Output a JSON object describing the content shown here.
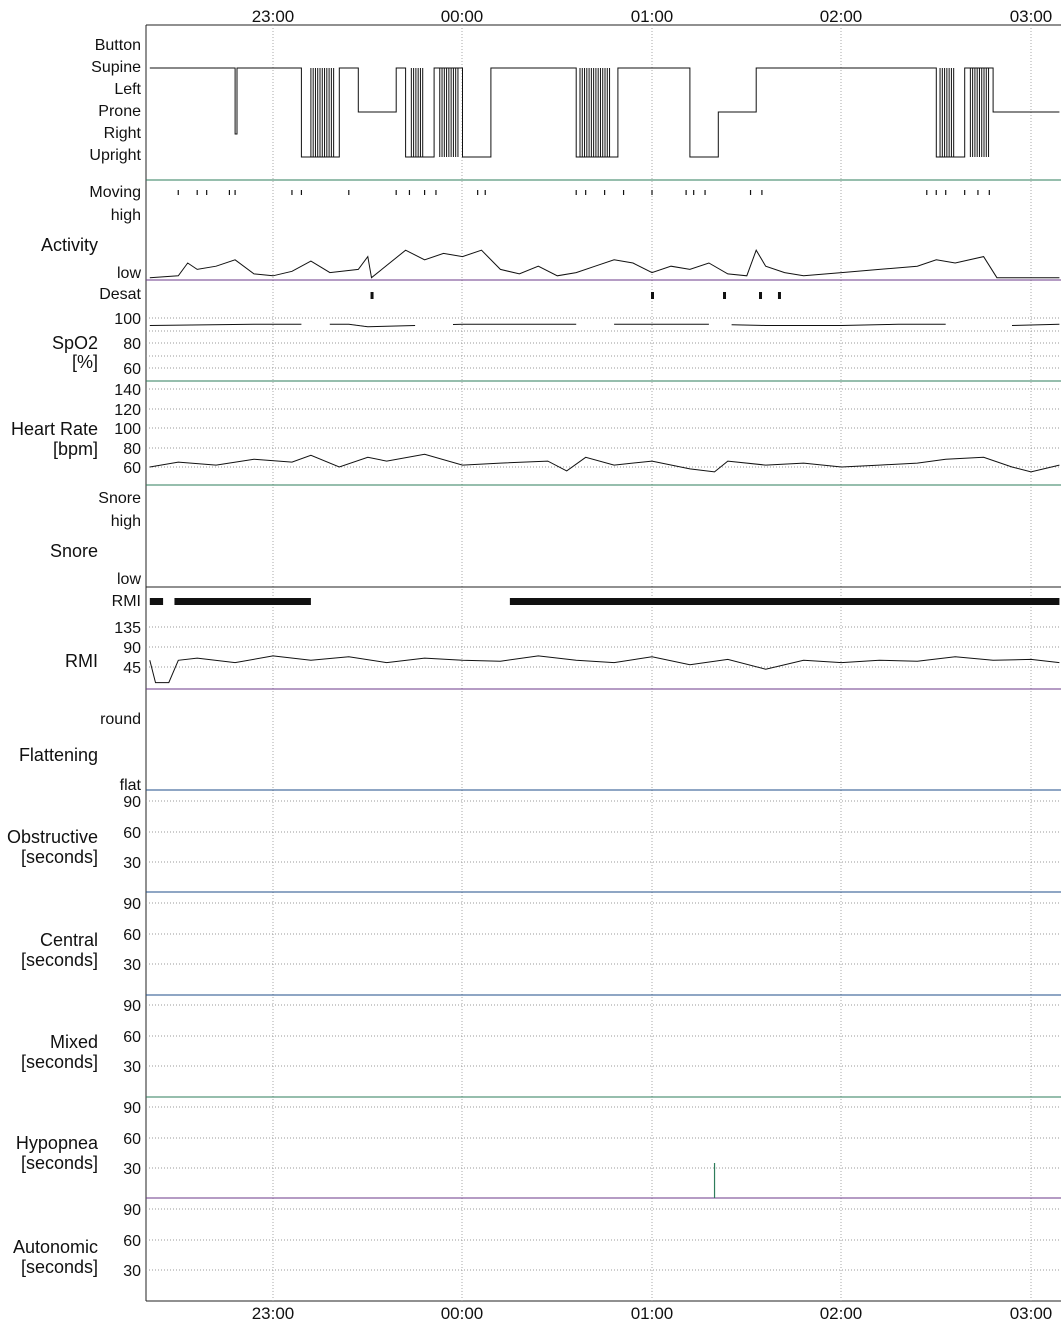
{
  "time_axis": {
    "ticks": [
      "23:00",
      "00:00",
      "01:00",
      "02:00",
      "03:00"
    ]
  },
  "panels": {
    "position": {
      "labels": [
        "Button",
        "Supine",
        "Left",
        "Prone",
        "Right",
        "Upright"
      ]
    },
    "moving": {
      "label": "Moving"
    },
    "activity": {
      "title": "Activity",
      "high": "high",
      "low": "low"
    },
    "desat": {
      "label": "Desat"
    },
    "spo2": {
      "title_line1": "SpO2",
      "title_line2": "[%]",
      "ticks": [
        "100",
        "80",
        "60"
      ]
    },
    "heart_rate": {
      "title_line1": "Heart Rate",
      "title_line2": "[bpm]",
      "ticks": [
        "140",
        "120",
        "100",
        "80",
        "60"
      ]
    },
    "snore": {
      "top": "Snore",
      "high": "high",
      "title": "Snore",
      "low": "low"
    },
    "rmi": {
      "top": "RMI",
      "title": "RMI",
      "ticks": [
        "135",
        "90",
        "45"
      ]
    },
    "flattening": {
      "title": "Flattening",
      "round": "round",
      "flat": "flat"
    },
    "obstructive": {
      "title_line1": "Obstructive",
      "title_line2": "[seconds]",
      "ticks": [
        "90",
        "60",
        "30"
      ]
    },
    "central": {
      "title_line1": "Central",
      "title_line2": "[seconds]",
      "ticks": [
        "90",
        "60",
        "30"
      ]
    },
    "mixed": {
      "title_line1": "Mixed",
      "title_line2": "[seconds]",
      "ticks": [
        "90",
        "60",
        "30"
      ]
    },
    "hypopnea": {
      "title_line1": "Hypopnea",
      "title_line2": "[seconds]",
      "ticks": [
        "90",
        "60",
        "30"
      ]
    },
    "autonomic": {
      "title_line1": "Autonomic",
      "title_line2": "[seconds]",
      "ticks": [
        "90",
        "60",
        "30"
      ]
    }
  },
  "chart_data": {
    "type": "line",
    "description_units": "Time in decimal hours since midnight (22.5 = 22:30, 25.0 = 01:00)",
    "x_range": [
      22.35,
      27.15
    ],
    "position": {
      "categories": [
        "Button",
        "Supine",
        "Left",
        "Prone",
        "Right",
        "Upright"
      ],
      "segments": [
        [
          22.35,
          "Supine"
        ],
        [
          22.8,
          "Right"
        ],
        [
          22.81,
          "Supine"
        ],
        [
          23.15,
          "Upright"
        ],
        [
          23.35,
          "Supine"
        ],
        [
          23.45,
          "Prone"
        ],
        [
          23.65,
          "Supine"
        ],
        [
          23.7,
          "Upright"
        ],
        [
          23.85,
          "Supine"
        ],
        [
          24.0,
          "Upright"
        ],
        [
          24.15,
          "Supine"
        ],
        [
          24.6,
          "Upright"
        ],
        [
          24.82,
          "Supine"
        ],
        [
          25.2,
          "Upright"
        ],
        [
          25.35,
          "Prone"
        ],
        [
          25.55,
          "Supine"
        ],
        [
          25.85,
          "Supine"
        ],
        [
          26.5,
          "Upright"
        ],
        [
          26.65,
          "Supine"
        ],
        [
          26.8,
          "Prone"
        ],
        [
          27.15,
          "Prone"
        ]
      ]
    },
    "moving_times": [
      22.5,
      22.6,
      22.65,
      22.77,
      22.8,
      23.1,
      23.15,
      23.4,
      23.65,
      23.72,
      23.8,
      23.86,
      24.08,
      24.12,
      24.6,
      24.65,
      24.75,
      24.85,
      25.0,
      25.18,
      25.22,
      25.28,
      25.52,
      25.58,
      26.45,
      26.5,
      26.55,
      26.65,
      26.72,
      26.78
    ],
    "activity": {
      "low": 0,
      "high": 100,
      "points": [
        [
          22.35,
          2
        ],
        [
          22.5,
          5
        ],
        [
          22.55,
          25
        ],
        [
          22.6,
          15
        ],
        [
          22.7,
          20
        ],
        [
          22.8,
          30
        ],
        [
          22.9,
          8
        ],
        [
          23.0,
          5
        ],
        [
          23.1,
          12
        ],
        [
          23.2,
          28
        ],
        [
          23.3,
          10
        ],
        [
          23.45,
          15
        ],
        [
          23.5,
          35
        ],
        [
          23.52,
          2
        ],
        [
          23.7,
          45
        ],
        [
          23.8,
          30
        ],
        [
          23.9,
          40
        ],
        [
          24.0,
          35
        ],
        [
          24.1,
          45
        ],
        [
          24.2,
          15
        ],
        [
          24.3,
          8
        ],
        [
          24.4,
          20
        ],
        [
          24.5,
          5
        ],
        [
          24.6,
          10
        ],
        [
          24.7,
          20
        ],
        [
          24.8,
          30
        ],
        [
          24.9,
          25
        ],
        [
          25.0,
          10
        ],
        [
          25.1,
          20
        ],
        [
          25.2,
          15
        ],
        [
          25.3,
          25
        ],
        [
          25.4,
          8
        ],
        [
          25.5,
          5
        ],
        [
          25.55,
          45
        ],
        [
          25.6,
          20
        ],
        [
          25.7,
          10
        ],
        [
          25.8,
          5
        ],
        [
          26.0,
          10
        ],
        [
          26.2,
          15
        ],
        [
          26.4,
          20
        ],
        [
          26.5,
          30
        ],
        [
          26.6,
          25
        ],
        [
          26.75,
          35
        ],
        [
          26.82,
          2
        ],
        [
          27.0,
          2
        ],
        [
          27.15,
          2
        ]
      ]
    },
    "desat_times": [
      23.52,
      25.0,
      25.38,
      25.57,
      25.67
    ],
    "spo2": {
      "range": [
        50,
        100
      ],
      "points": [
        [
          22.35,
          94
        ],
        [
          22.9,
          95
        ],
        [
          23.15,
          95
        ],
        [
          23.4,
          95
        ],
        [
          23.5,
          93
        ],
        [
          23.75,
          94
        ],
        [
          24.0,
          95
        ],
        [
          24.3,
          95
        ],
        [
          24.6,
          95
        ],
        [
          25.0,
          95
        ],
        [
          25.3,
          95
        ],
        [
          25.6,
          94
        ],
        [
          26.0,
          94
        ],
        [
          26.3,
          95
        ],
        [
          26.55,
          95
        ],
        [
          26.9,
          94
        ],
        [
          27.15,
          95
        ]
      ],
      "gaps": [
        [
          23.17,
          23.28
        ],
        [
          23.75,
          23.95
        ],
        [
          24.61,
          24.8
        ],
        [
          25.33,
          25.4
        ],
        [
          26.55,
          26.9
        ]
      ]
    },
    "heart_rate": {
      "range": [
        50,
        145
      ],
      "points": [
        [
          22.35,
          60
        ],
        [
          22.5,
          65
        ],
        [
          22.7,
          62
        ],
        [
          22.9,
          68
        ],
        [
          23.1,
          65
        ],
        [
          23.2,
          72
        ],
        [
          23.35,
          60
        ],
        [
          23.5,
          70
        ],
        [
          23.6,
          66
        ],
        [
          23.8,
          73
        ],
        [
          24.0,
          62
        ],
        [
          24.2,
          64
        ],
        [
          24.45,
          66
        ],
        [
          24.55,
          56
        ],
        [
          24.65,
          70
        ],
        [
          24.8,
          62
        ],
        [
          25.0,
          66
        ],
        [
          25.2,
          58
        ],
        [
          25.33,
          55
        ],
        [
          25.4,
          66
        ],
        [
          25.6,
          62
        ],
        [
          25.8,
          64
        ],
        [
          26.0,
          60
        ],
        [
          26.2,
          62
        ],
        [
          26.4,
          64
        ],
        [
          26.55,
          68
        ],
        [
          26.75,
          70
        ],
        [
          26.9,
          60
        ],
        [
          27.0,
          55
        ],
        [
          27.15,
          62
        ]
      ]
    },
    "rmi": {
      "range": [
        0,
        160
      ],
      "points": [
        [
          22.35,
          60
        ],
        [
          22.38,
          10
        ],
        [
          22.45,
          10
        ],
        [
          22.5,
          60
        ],
        [
          22.6,
          65
        ],
        [
          22.8,
          55
        ],
        [
          23.0,
          70
        ],
        [
          23.2,
          60
        ],
        [
          23.4,
          68
        ],
        [
          23.6,
          55
        ],
        [
          23.8,
          65
        ],
        [
          24.0,
          60
        ],
        [
          24.2,
          58
        ],
        [
          24.4,
          70
        ],
        [
          24.6,
          60
        ],
        [
          24.8,
          55
        ],
        [
          25.0,
          68
        ],
        [
          25.2,
          50
        ],
        [
          25.4,
          62
        ],
        [
          25.6,
          40
        ],
        [
          25.8,
          60
        ],
        [
          26.0,
          55
        ],
        [
          26.2,
          60
        ],
        [
          26.4,
          58
        ],
        [
          26.6,
          68
        ],
        [
          26.8,
          60
        ],
        [
          27.0,
          62
        ],
        [
          27.15,
          55
        ]
      ]
    },
    "rmi_bars": [
      [
        22.35,
        22.42
      ],
      [
        22.48,
        23.2
      ],
      [
        24.25,
        27.15
      ]
    ],
    "hypopnea_events": [
      [
        25.33,
        35
      ]
    ]
  }
}
